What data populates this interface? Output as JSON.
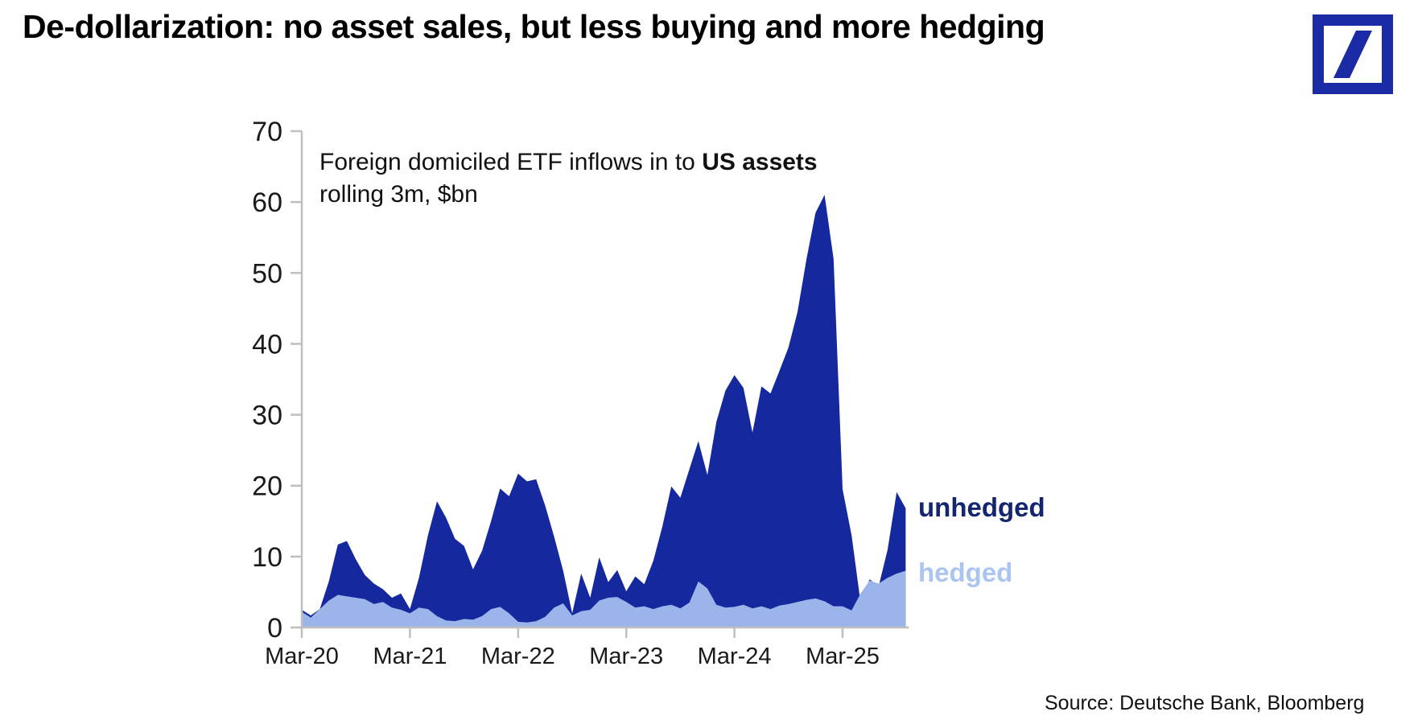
{
  "title": "De-dollarization: no asset sales, but less buying and more hedging",
  "logo": {
    "name": "deutsche-bank-logo",
    "color": "#1b2ba6"
  },
  "source": "Source: Deutsche Bank, Bloomberg",
  "colors": {
    "unhedged_area": "#16289e",
    "hedged_area": "#9bb4e9",
    "unhedged_label": "#14266f",
    "hedged_label": "#abc4f0",
    "axis": "#bfbfbf",
    "tick_text": "#1a1a1a"
  },
  "chart_data": {
    "type": "area",
    "note_line1_regular": "Foreign domiciled ETF inflows in to ",
    "note_line1_bold": "US assets",
    "note_line2": "rolling 3m, $bn",
    "x_start_month": "Mar-2020",
    "x_end_month": "Oct-2025",
    "x_tick_month_indices": [
      0,
      12,
      24,
      36,
      48,
      60
    ],
    "x_tick_labels": [
      "Mar-20",
      "Mar-21",
      "Mar-22",
      "Mar-23",
      "Mar-24",
      "Mar-25"
    ],
    "ylim": [
      0,
      70
    ],
    "y_ticks": [
      0,
      10,
      20,
      30,
      40,
      50,
      60,
      70
    ],
    "grid": false,
    "legend_position": "right-of-last-points",
    "series": [
      {
        "name": "unhedged",
        "color": "#16289e",
        "values": [
          2.5,
          1.7,
          2.6,
          6.5,
          11.7,
          12.2,
          9.6,
          7.4,
          6.2,
          5.4,
          4.2,
          4.8,
          2.6,
          7.0,
          13.0,
          17.8,
          15.5,
          12.5,
          11.5,
          8.2,
          10.8,
          15.0,
          19.6,
          18.5,
          21.7,
          20.6,
          20.9,
          17.2,
          12.8,
          8.0,
          2.0,
          7.6,
          4.2,
          9.9,
          6.4,
          8.1,
          5.1,
          7.2,
          6.1,
          9.4,
          14.2,
          19.9,
          18.3,
          22.3,
          26.3,
          21.5,
          29.0,
          33.4,
          35.6,
          33.8,
          27.5,
          34.0,
          33.0,
          36.2,
          39.5,
          44.5,
          52.0,
          58.5,
          61.0,
          52.0,
          19.5,
          13.0,
          3.5,
          6.8,
          5.8,
          11.0,
          19.1,
          16.8
        ]
      },
      {
        "name": "hedged",
        "color": "#9bb4e9",
        "values": [
          2.2,
          1.4,
          2.6,
          3.8,
          4.6,
          4.4,
          4.2,
          4.0,
          3.3,
          3.6,
          2.8,
          2.5,
          2.0,
          2.8,
          2.6,
          1.6,
          1.0,
          0.9,
          1.2,
          1.1,
          1.6,
          2.6,
          2.9,
          2.0,
          0.8,
          0.7,
          0.9,
          1.5,
          2.8,
          3.4,
          1.7,
          2.3,
          2.5,
          3.8,
          4.2,
          4.3,
          3.6,
          2.8,
          3.0,
          2.6,
          3.0,
          3.2,
          2.7,
          3.5,
          6.5,
          5.5,
          3.2,
          2.8,
          2.9,
          3.2,
          2.7,
          3.0,
          2.6,
          3.1,
          3.3,
          3.6,
          3.9,
          4.1,
          3.7,
          3.0,
          3.0,
          2.4,
          4.8,
          6.6,
          6.2,
          7.0,
          7.6,
          8.0
        ]
      }
    ],
    "legend": [
      {
        "label": "unhedged",
        "color": "#14266f"
      },
      {
        "label": "hedged",
        "color": "#abc4f0"
      }
    ]
  }
}
